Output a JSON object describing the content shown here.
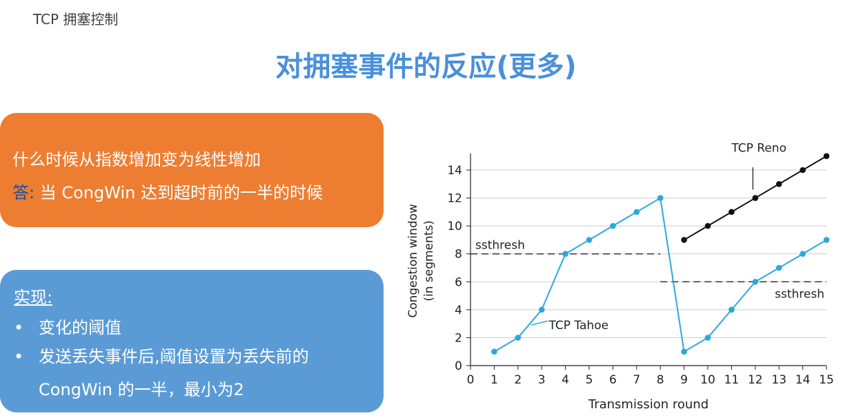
{
  "header": {
    "label": "TCP 拥塞控制"
  },
  "title": "对拥塞事件的反应(更多)",
  "question_card": {
    "question": "什么时候从指数增加变为线性增加",
    "answer_prefix": "答:",
    "answer_text": " 当 CongWin 达到超时前的一半的时候"
  },
  "impl_card": {
    "heading": "实现:",
    "bullet_symbol": "•",
    "bullets": [
      "变化的阈值",
      "发送丢失事件后,阈值设置为丢失前的"
    ],
    "bullet2_continuation": "CongWin 的一半，最小为2"
  },
  "colors": {
    "orange_card": "#ed7d31",
    "blue_card": "#5b9bd5",
    "title": "#4a90d9",
    "tahoe": "#29a8e0",
    "reno": "#111111"
  },
  "chart_data": {
    "type": "line",
    "xlabel": "Transmission round",
    "ylabel": [
      "Congestion window",
      "(in segments)"
    ],
    "xlim": [
      0,
      15
    ],
    "ylim": [
      0,
      15
    ],
    "x_ticks": [
      0,
      1,
      2,
      3,
      4,
      5,
      6,
      7,
      8,
      9,
      10,
      11,
      12,
      13,
      14,
      15
    ],
    "y_ticks": [
      0,
      2,
      4,
      6,
      8,
      10,
      12,
      14
    ],
    "grid": "horizontal",
    "series": [
      {
        "name": "TCP Tahoe",
        "color": "#29a8e0",
        "points": [
          [
            1,
            1
          ],
          [
            2,
            2
          ],
          [
            3,
            4
          ],
          [
            4,
            8
          ],
          [
            5,
            9
          ],
          [
            6,
            10
          ],
          [
            7,
            11
          ],
          [
            8,
            12
          ],
          [
            9,
            1
          ],
          [
            10,
            2
          ],
          [
            11,
            4
          ],
          [
            12,
            6
          ],
          [
            13,
            7
          ],
          [
            14,
            8
          ],
          [
            15,
            9
          ]
        ]
      },
      {
        "name": "TCP Reno",
        "color": "#111111",
        "points": [
          [
            9,
            9
          ],
          [
            10,
            10
          ],
          [
            11,
            11
          ],
          [
            12,
            12
          ],
          [
            13,
            13
          ],
          [
            14,
            14
          ],
          [
            15,
            15
          ]
        ]
      }
    ],
    "thresholds": [
      {
        "label": "ssthresh",
        "y": 8,
        "x_from": 0,
        "x_to": 8
      },
      {
        "label": "ssthresh",
        "y": 6,
        "x_from": 8,
        "x_to": 15
      }
    ]
  }
}
